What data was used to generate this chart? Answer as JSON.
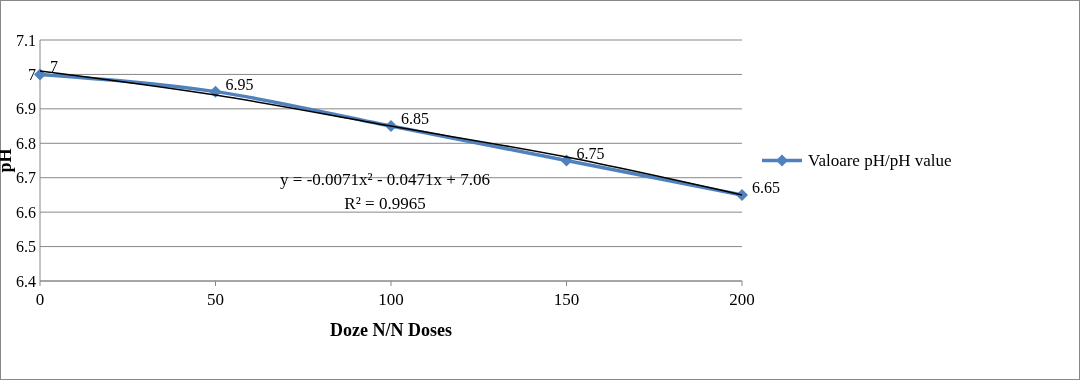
{
  "chart_data": {
    "type": "line",
    "xlabel": "Doze N/N Doses",
    "ylabel": "pH",
    "categories": [
      "0",
      "50",
      "100",
      "150",
      "200"
    ],
    "series": [
      {
        "name": "Valoare pH/pH value",
        "color": "#4f81bd",
        "values": [
          7,
          6.95,
          6.85,
          6.75,
          6.65
        ],
        "value_labels": [
          "7",
          "6.95",
          "6.85",
          "6.75",
          "6.65"
        ],
        "marker": "diamond"
      },
      {
        "type": "line",
        "color": "#000000",
        "x": [
          "0",
          "50",
          "100",
          "150",
          "200"
        ],
        "values": [
          7.01,
          6.94,
          6.85,
          6.76,
          6.65
        ],
        "marker": "none"
      }
    ],
    "ylim": [
      6.4,
      7.1
    ],
    "yticks": [
      6.4,
      6.5,
      6.6,
      6.7,
      6.8,
      6.9,
      7,
      7.1
    ],
    "grid": "y",
    "legend": "right",
    "annotations": [
      "y = -0.0071x² - 0.0471x + 7.06",
      "R² = 0.9965"
    ]
  }
}
